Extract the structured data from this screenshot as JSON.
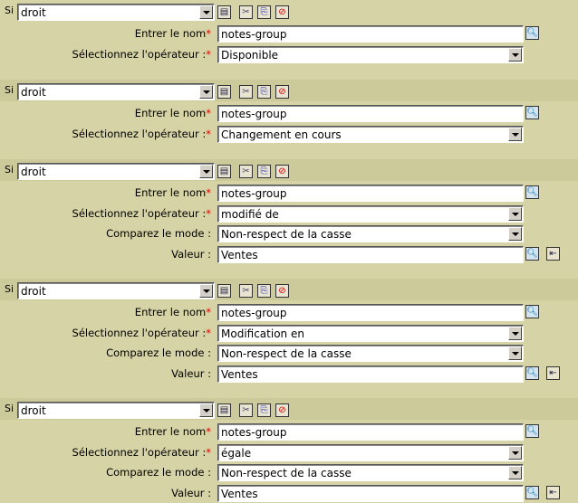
{
  "si_label": "Si",
  "labels": {
    "name": "Entrer le nom",
    "operator": "Sélectionnez l'opérateur :",
    "compare": "Comparez le mode :",
    "value": "Valeur :",
    "required": "*"
  },
  "conditions": [
    {
      "subject": "droit",
      "name": "notes-group",
      "operator": "Disponible"
    },
    {
      "subject": "droit",
      "name": "notes-group",
      "operator": "Changement en cours"
    },
    {
      "subject": "droit",
      "name": "notes-group",
      "operator": "modifié de",
      "compare": "Non-respect de la casse",
      "value": "Ventes"
    },
    {
      "subject": "droit",
      "name": "notes-group",
      "operator": "Modification en",
      "compare": "Non-respect de la casse",
      "value": "Ventes"
    },
    {
      "subject": "droit",
      "name": "notes-group",
      "operator": "égale",
      "compare": "Non-respect de la casse",
      "value": "Ventes"
    }
  ],
  "icons": [
    "properties-icon",
    "cut-icon",
    "copy-icon",
    "delete-icon",
    "search-icon",
    "insert-parameter-icon"
  ]
}
